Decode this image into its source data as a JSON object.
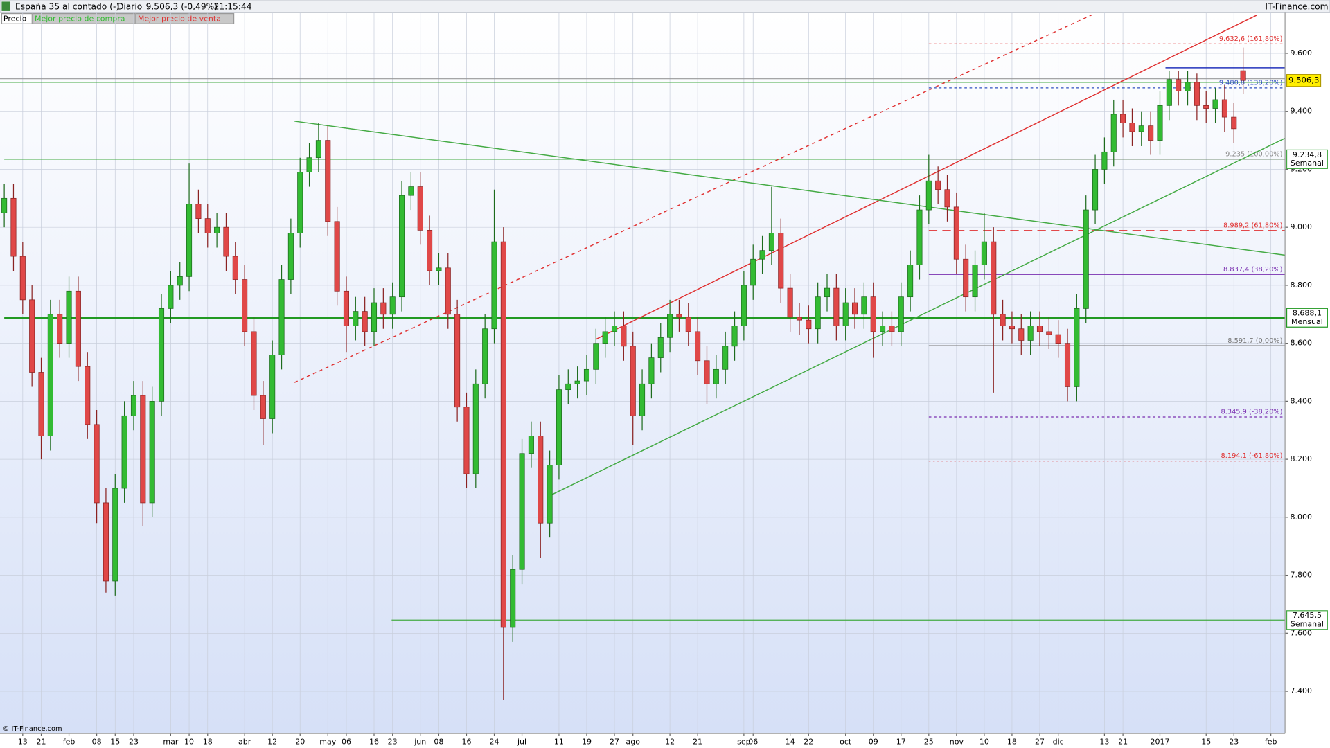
{
  "header": {
    "title": "España 35 al contado (-)",
    "period": "Diario",
    "price": "9.506,3 (-0,49%)",
    "time": "21:15:44",
    "site": "IT-Finance.com"
  },
  "legend": [
    {
      "label": "Precio",
      "color": "#000000"
    },
    {
      "label": "Mejor precio de compra",
      "color": "#33bb33"
    },
    {
      "label": "Mejor precio de venta",
      "color": "#dd3333"
    }
  ],
  "footer": "© IT-Finance.com",
  "chart_data": {
    "type": "candlestick",
    "categories": [
      null,
      null,
      "13",
      null,
      "21",
      null,
      null,
      "feb",
      null,
      null,
      "08",
      null,
      "15",
      null,
      "23",
      null,
      null,
      null,
      "mar",
      null,
      "10",
      null,
      "18",
      null,
      null,
      null,
      "abr",
      null,
      null,
      "12",
      null,
      null,
      "20",
      null,
      null,
      "may",
      null,
      "06",
      null,
      null,
      "16",
      null,
      "23",
      null,
      null,
      "jun",
      null,
      "08",
      null,
      null,
      "16",
      null,
      null,
      "24",
      null,
      null,
      "jul",
      null,
      null,
      null,
      "11",
      null,
      null,
      "19",
      null,
      null,
      "27",
      null,
      "ago",
      null,
      null,
      null,
      "12",
      null,
      null,
      "21",
      null,
      null,
      null,
      null,
      "sep",
      "06",
      null,
      null,
      null,
      "14",
      null,
      "22",
      null,
      null,
      null,
      "oct",
      null,
      null,
      "09",
      null,
      null,
      "17",
      null,
      null,
      "25",
      null,
      null,
      "nov",
      null,
      null,
      "10",
      null,
      null,
      "18",
      null,
      null,
      "27",
      null,
      "dic",
      null,
      null,
      null,
      null,
      "13",
      null,
      "21",
      null,
      null,
      null,
      "2017",
      null,
      null,
      null,
      null,
      "15",
      null,
      null,
      "23",
      null,
      null,
      null,
      "feb"
    ],
    "open": [
      9050,
      9100,
      8900,
      8750,
      8500,
      8280,
      8700,
      8600,
      8780,
      8520,
      8320,
      8050,
      7780,
      8100,
      8350,
      8420,
      8050,
      8400,
      8720,
      8800,
      8830,
      9080,
      9030,
      8980,
      9000,
      8900,
      8820,
      8640,
      8420,
      8340,
      8560,
      8820,
      8980,
      9190,
      9240,
      9300,
      9020,
      8780,
      8660,
      8710,
      8640,
      8740,
      8700,
      8760,
      9110,
      9140,
      8990,
      8850,
      8860,
      8700,
      8380,
      8150,
      8460,
      8650,
      8950,
      7620,
      7820,
      8220,
      8280,
      7980,
      8180,
      8440,
      8460,
      8470,
      8510,
      8600,
      8640,
      8660,
      8590,
      8350,
      8460,
      8550,
      8620,
      8700,
      8690,
      8640,
      8540,
      8460,
      8510,
      8590,
      8660,
      8800,
      8890,
      8920,
      8980,
      8790,
      8690,
      8680,
      8650,
      8760,
      8790,
      8660,
      8740,
      8700,
      8760,
      8640,
      8660,
      8640,
      8760,
      8870,
      9060,
      9160,
      9130,
      9070,
      8890,
      8760,
      8870,
      8950,
      8700,
      8660,
      8650,
      8610,
      8660,
      8640,
      8630,
      8600,
      8450,
      8720,
      9060,
      9200,
      9260,
      9390,
      9360,
      9330,
      9350,
      9300,
      9420,
      9510,
      9470,
      9500,
      9420,
      9410,
      9440,
      9380,
      9540,
      null,
      null,
      null
    ],
    "high": [
      9150,
      9150,
      8950,
      8800,
      8550,
      8750,
      8750,
      8830,
      8830,
      8570,
      8370,
      8100,
      8150,
      8400,
      8470,
      8470,
      8450,
      8770,
      8850,
      8880,
      9220,
      9130,
      9080,
      9050,
      9050,
      8950,
      8870,
      8690,
      8470,
      8610,
      8870,
      9030,
      9240,
      9290,
      9360,
      9350,
      9070,
      8830,
      8760,
      8760,
      8790,
      8790,
      8810,
      9160,
      9190,
      9190,
      9040,
      8910,
      8910,
      8750,
      8430,
      8510,
      8700,
      9130,
      9000,
      7870,
      8270,
      8330,
      8330,
      8230,
      8490,
      8510,
      8520,
      8560,
      8650,
      8690,
      8710,
      8710,
      8640,
      8510,
      8600,
      8670,
      8750,
      8750,
      8740,
      8690,
      8590,
      8560,
      8640,
      8710,
      8850,
      8940,
      8970,
      9140,
      9030,
      8840,
      8740,
      8730,
      8810,
      8840,
      8840,
      8790,
      8790,
      8810,
      8810,
      8710,
      8710,
      8810,
      8920,
      9110,
      9250,
      9210,
      9180,
      9120,
      8940,
      8920,
      9050,
      9000,
      8750,
      8710,
      8700,
      8710,
      8710,
      8690,
      8680,
      8650,
      8770,
      9110,
      9250,
      9310,
      9440,
      9440,
      9410,
      9400,
      9400,
      9470,
      9540,
      9540,
      9540,
      9530,
      9470,
      9480,
      9490,
      9430,
      9620,
      null,
      null,
      null
    ],
    "low": [
      9000,
      8850,
      8700,
      8450,
      8200,
      8230,
      8550,
      8550,
      8470,
      8270,
      7980,
      7740,
      7730,
      8050,
      8300,
      7970,
      8000,
      8350,
      8670,
      8750,
      8780,
      8980,
      8930,
      8930,
      8850,
      8770,
      8590,
      8370,
      8250,
      8290,
      8510,
      8770,
      8930,
      9140,
      9190,
      8970,
      8730,
      8570,
      8610,
      8590,
      8590,
      8650,
      8650,
      8710,
      9060,
      8940,
      8800,
      8800,
      8650,
      8330,
      8100,
      8100,
      8410,
      8600,
      7370,
      7570,
      7770,
      8170,
      7860,
      7930,
      8130,
      8390,
      8410,
      8420,
      8460,
      8550,
      8590,
      8540,
      8250,
      8300,
      8410,
      8500,
      8570,
      8640,
      8590,
      8490,
      8390,
      8410,
      8460,
      8540,
      8610,
      8750,
      8840,
      8870,
      8740,
      8640,
      8630,
      8600,
      8600,
      8710,
      8610,
      8610,
      8650,
      8650,
      8550,
      8590,
      8590,
      8590,
      8710,
      8820,
      9010,
      9080,
      9020,
      8840,
      8710,
      8710,
      8820,
      8430,
      8610,
      8600,
      8560,
      8560,
      8590,
      8580,
      8550,
      8400,
      8400,
      8670,
      9010,
      9150,
      9210,
      9310,
      9280,
      9280,
      9250,
      9250,
      9370,
      9420,
      9420,
      9370,
      9360,
      9360,
      9330,
      9290,
      9460,
      null,
      null,
      null
    ],
    "close": [
      9100,
      8900,
      8750,
      8500,
      8280,
      8700,
      8600,
      8780,
      8520,
      8320,
      8050,
      7780,
      8100,
      8350,
      8420,
      8050,
      8400,
      8720,
      8800,
      8830,
      9080,
      9030,
      8980,
      9000,
      8900,
      8820,
      8640,
      8420,
      8340,
      8560,
      8820,
      8980,
      9190,
      9240,
      9300,
      9020,
      8780,
      8660,
      8710,
      8640,
      8740,
      8700,
      8760,
      9110,
      9140,
      8990,
      8850,
      8860,
      8700,
      8380,
      8150,
      8460,
      8650,
      8950,
      7620,
      7820,
      8220,
      8280,
      7980,
      8180,
      8440,
      8460,
      8470,
      8510,
      8600,
      8640,
      8660,
      8590,
      8350,
      8460,
      8550,
      8620,
      8700,
      8690,
      8640,
      8540,
      8460,
      8510,
      8590,
      8660,
      8800,
      8890,
      8920,
      8980,
      8790,
      8690,
      8680,
      8650,
      8760,
      8790,
      8660,
      8740,
      8700,
      8760,
      8640,
      8660,
      8640,
      8760,
      8870,
      9060,
      9160,
      9130,
      9070,
      8890,
      8760,
      8870,
      8950,
      8700,
      8660,
      8650,
      8610,
      8660,
      8640,
      8630,
      8600,
      8450,
      8720,
      9060,
      9200,
      9260,
      9390,
      9360,
      9330,
      9350,
      9300,
      9420,
      9510,
      9470,
      9500,
      9420,
      9410,
      9440,
      9380,
      9340,
      9506.3,
      null,
      null,
      null
    ],
    "up_color": "#33bb33",
    "down_color": "#e04848",
    "ylim": [
      7254,
      9740
    ],
    "yticks": [
      {
        "value": 7400,
        "label": "7.400"
      },
      {
        "value": 7600,
        "label": "7.600"
      },
      {
        "value": 7800,
        "label": "7.800"
      },
      {
        "value": 8000,
        "label": "8.000"
      },
      {
        "value": 8200,
        "label": "8.200"
      },
      {
        "value": 8400,
        "label": "8.400"
      },
      {
        "value": 8600,
        "label": "8.600"
      },
      {
        "value": 8800,
        "label": "8.800"
      },
      {
        "value": 9000,
        "label": "9.000"
      },
      {
        "value": 9200,
        "label": "9.200"
      },
      {
        "value": 9400,
        "label": "9.400"
      },
      {
        "value": 9600,
        "label": "9.600"
      }
    ],
    "grid": true,
    "lines": [
      {
        "value": 9512.3,
        "color": "#999999"
      },
      {
        "value": 9500,
        "color": "#44aa44"
      }
    ],
    "levels": [
      {
        "value": 9234.8,
        "label": "9.234,8",
        "period": "Semanal",
        "color": "#44aa44",
        "x_from": 0,
        "width": 1
      },
      {
        "value": 8688.1,
        "label": "8.688,1",
        "period": "Mensual",
        "color": "#229922",
        "x_from": 0,
        "width": 2
      },
      {
        "value": 7645.5,
        "label": "7.645,5",
        "period": "Semanal",
        "color": "#44aa44",
        "x_from": 41.9,
        "width": 1
      }
    ],
    "fibonacci": [
      {
        "value": 9632.6,
        "label": "9.632,6 (161,80%)",
        "color": "#e03030",
        "dash": "3,3"
      },
      {
        "value": 9480.8,
        "label": "9.480,8 (138,20%)",
        "color": "#3050c0",
        "dash": "3,3"
      },
      {
        "value": 9235,
        "label": "9.235 (100,00%)",
        "color": "#888888",
        "dash": ""
      },
      {
        "value": 8989.2,
        "label": "8.989,2 (61,80%)",
        "color": "#e03030",
        "dash": "10,6"
      },
      {
        "value": 8837.4,
        "label": "8.837,4 (38,20%)",
        "color": "#7a2fb0",
        "dash": ""
      },
      {
        "value": 8591.7,
        "label": "8.591,7 (0,00%)",
        "color": "#777777",
        "dash": ""
      },
      {
        "value": 8345.9,
        "label": "8.345,9 (-38,20%)",
        "color": "#7a2fb0",
        "dash": "3,3"
      },
      {
        "value": 8194.1,
        "label": "8.194,1 (-61,80%)",
        "color": "#e03030",
        "dash": "2,3"
      }
    ],
    "fib_from": 100,
    "trendlines": [
      {
        "x": [
          64,
          135.5
        ],
        "y": [
          8614,
          9732
        ],
        "color": "#e03030",
        "dash": ""
      },
      {
        "x": [
          31.4,
          117.6
        ],
        "y": [
          8465,
          9732
        ],
        "color": "#e03030",
        "dash": "4,4"
      },
      {
        "x": [
          31.4,
          138.5
        ],
        "y": [
          9366,
          8904
        ],
        "color": "#44aa44",
        "dash": ""
      },
      {
        "x": [
          58.9,
          138.5
        ],
        "y": [
          8073,
          9307
        ],
        "color": "#44aa44",
        "dash": ""
      },
      {
        "x": [
          125.6,
          138.5
        ],
        "y": [
          9550,
          9550
        ],
        "color": "#2233bb",
        "dash": ""
      }
    ],
    "last": {
      "value": 9506.3,
      "label": "9.506,3",
      "color": "#ffee00"
    }
  }
}
